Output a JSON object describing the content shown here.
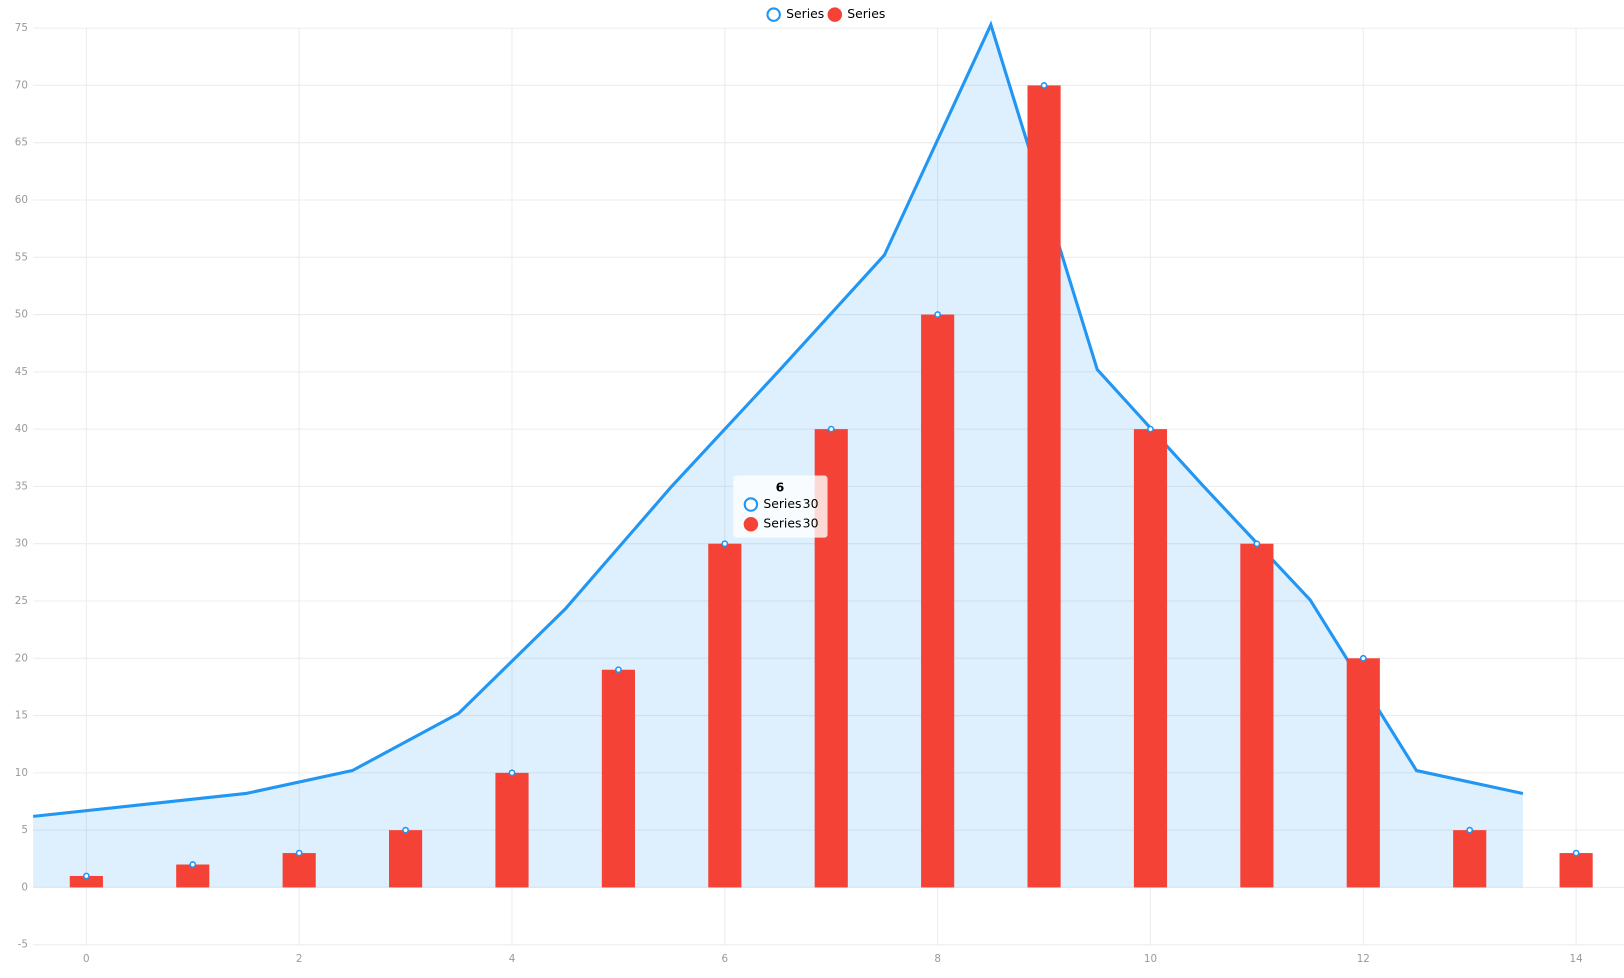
{
  "chart_data": {
    "type": "bar",
    "xlim": [
      -0.5,
      14.45
    ],
    "xticks": [
      0,
      2,
      4,
      6,
      8,
      10,
      12,
      14
    ],
    "ylim": [
      -5,
      75
    ],
    "yticks": [
      -5,
      0,
      5,
      10,
      15,
      20,
      25,
      30,
      35,
      40,
      45,
      50,
      55,
      60,
      65,
      70,
      75
    ],
    "grid": true,
    "series": [
      {
        "name": "Series",
        "type": "area",
        "color": "#2196f3",
        "x": [
          -0.5,
          0.5,
          1.5,
          2.5,
          3.5,
          4.5,
          5.5,
          6.5,
          7.5,
          8.5,
          9.5,
          10.5,
          11.5,
          12.5,
          13.5
        ],
        "values": [
          6.2,
          7.2,
          8.2,
          10.2,
          15.2,
          24.3,
          35,
          45,
          55.2,
          75.3,
          45.2,
          35,
          25.1,
          10.2,
          8.2
        ]
      },
      {
        "name": "Series",
        "type": "bar",
        "color": "#f44336",
        "x": [
          0,
          1,
          2,
          3,
          4,
          5,
          6,
          7,
          8,
          9,
          10,
          11,
          12,
          13,
          14
        ],
        "values": [
          1,
          2,
          3,
          5,
          10,
          19,
          30,
          40,
          50,
          70,
          40,
          30,
          20,
          5,
          3
        ]
      }
    ],
    "tooltip": {
      "title": "6",
      "items": [
        {
          "name": "Series",
          "value": 30
        },
        {
          "name": "Series",
          "value": 30
        }
      ]
    }
  }
}
